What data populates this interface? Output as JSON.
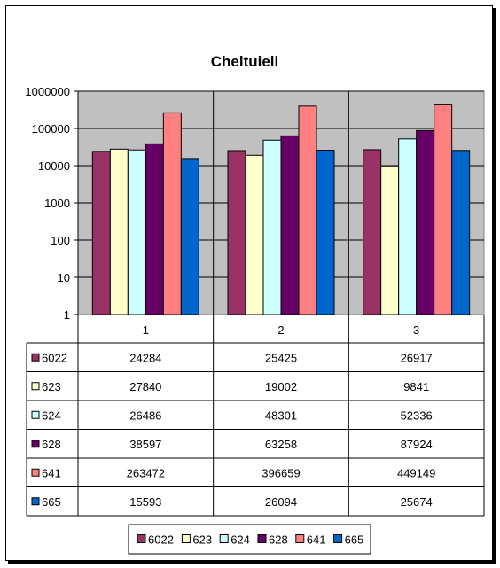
{
  "chart_data": {
    "type": "bar",
    "title": "Cheltuieli",
    "yscale": "log",
    "ylim": [
      1,
      1000000
    ],
    "yticks": [
      "1",
      "10",
      "100",
      "1000",
      "10000",
      "100000",
      "1000000"
    ],
    "categories": [
      "1",
      "2",
      "3"
    ],
    "series": [
      {
        "name": "6022",
        "color": "#993366",
        "values": [
          24284,
          25425,
          26917
        ]
      },
      {
        "name": "623",
        "color": "#FFFFCC",
        "values": [
          27840,
          19002,
          9841
        ]
      },
      {
        "name": "624",
        "color": "#CCFFFF",
        "values": [
          26486,
          48301,
          52336
        ]
      },
      {
        "name": "628",
        "color": "#660066",
        "values": [
          38597,
          63258,
          87924
        ]
      },
      {
        "name": "641",
        "color": "#FF8080",
        "values": [
          263472,
          396659,
          449149
        ]
      },
      {
        "name": "665",
        "color": "#0066CC",
        "values": [
          15593,
          26094,
          25674
        ]
      }
    ],
    "data_table": true,
    "grid": true,
    "plot_background": "#C0C0C0",
    "legend_position": "bottom"
  }
}
